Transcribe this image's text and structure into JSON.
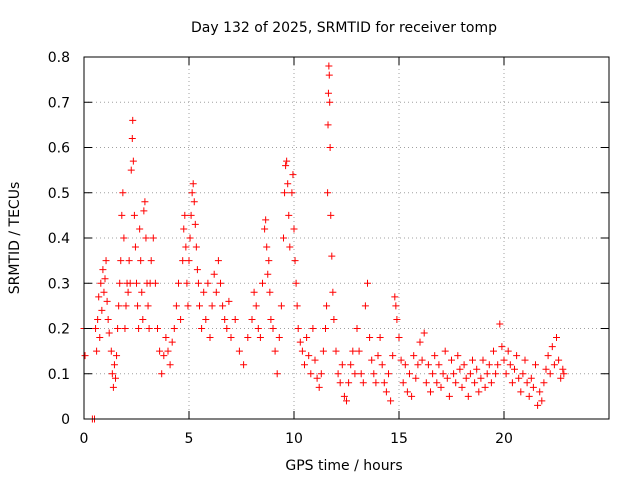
{
  "chart_data": {
    "type": "scatter",
    "title": "Day 132 of 2025, SRMTID for receiver tomp",
    "xlabel": "GPS time / hours",
    "ylabel": "SRMTID / TECUs",
    "xlim": [
      0,
      25
    ],
    "ylim": [
      0,
      0.8
    ],
    "xticks": [
      0,
      5,
      10,
      15,
      20
    ],
    "xtick_labels": [
      "0",
      "5",
      "10",
      "15",
      "20"
    ],
    "yticks": [
      0,
      0.1,
      0.2,
      0.3,
      0.4,
      0.5,
      0.6,
      0.7,
      0.8
    ],
    "ytick_labels": [
      "0",
      "0.1",
      "0.2",
      "0.3",
      "0.4",
      "0.5",
      "0.6",
      "0.7",
      "0.8"
    ],
    "grid": true,
    "marker": "plus",
    "color": "#ff0000",
    "series": [
      {
        "name": "SRMTID",
        "points": [
          [
            0.0,
            0.2
          ],
          [
            0.05,
            0.14
          ],
          [
            0.4,
            0.0
          ],
          [
            0.5,
            0.0
          ],
          [
            0.55,
            0.2
          ],
          [
            0.6,
            0.15
          ],
          [
            0.65,
            0.22
          ],
          [
            0.7,
            0.27
          ],
          [
            0.75,
            0.18
          ],
          [
            0.8,
            0.3
          ],
          [
            0.85,
            0.24
          ],
          [
            0.9,
            0.33
          ],
          [
            0.95,
            0.28
          ],
          [
            1.0,
            0.31
          ],
          [
            1.05,
            0.35
          ],
          [
            1.1,
            0.26
          ],
          [
            1.15,
            0.22
          ],
          [
            1.2,
            0.19
          ],
          [
            1.3,
            0.15
          ],
          [
            1.35,
            0.1
          ],
          [
            1.4,
            0.07
          ],
          [
            1.45,
            0.12
          ],
          [
            1.5,
            0.09
          ],
          [
            1.55,
            0.14
          ],
          [
            1.6,
            0.2
          ],
          [
            1.65,
            0.25
          ],
          [
            1.7,
            0.3
          ],
          [
            1.75,
            0.35
          ],
          [
            1.8,
            0.45
          ],
          [
            1.85,
            0.5
          ],
          [
            1.9,
            0.4
          ],
          [
            1.95,
            0.2
          ],
          [
            2.0,
            0.25
          ],
          [
            2.05,
            0.3
          ],
          [
            2.1,
            0.28
          ],
          [
            2.15,
            0.35
          ],
          [
            2.2,
            0.3
          ],
          [
            2.25,
            0.55
          ],
          [
            2.3,
            0.62
          ],
          [
            2.32,
            0.66
          ],
          [
            2.35,
            0.57
          ],
          [
            2.4,
            0.45
          ],
          [
            2.45,
            0.38
          ],
          [
            2.5,
            0.3
          ],
          [
            2.55,
            0.25
          ],
          [
            2.6,
            0.2
          ],
          [
            2.65,
            0.42
          ],
          [
            2.7,
            0.35
          ],
          [
            2.75,
            0.28
          ],
          [
            2.8,
            0.22
          ],
          [
            2.85,
            0.46
          ],
          [
            2.9,
            0.48
          ],
          [
            2.95,
            0.4
          ],
          [
            3.0,
            0.3
          ],
          [
            3.05,
            0.25
          ],
          [
            3.1,
            0.2
          ],
          [
            3.15,
            0.3
          ],
          [
            3.2,
            0.35
          ],
          [
            3.3,
            0.4
          ],
          [
            3.4,
            0.3
          ],
          [
            3.5,
            0.2
          ],
          [
            3.6,
            0.15
          ],
          [
            3.7,
            0.1
          ],
          [
            3.8,
            0.14
          ],
          [
            3.9,
            0.18
          ],
          [
            4.0,
            0.15
          ],
          [
            4.1,
            0.12
          ],
          [
            4.2,
            0.17
          ],
          [
            4.3,
            0.2
          ],
          [
            4.4,
            0.25
          ],
          [
            4.5,
            0.3
          ],
          [
            4.6,
            0.22
          ],
          [
            4.7,
            0.35
          ],
          [
            4.75,
            0.42
          ],
          [
            4.8,
            0.45
          ],
          [
            4.85,
            0.38
          ],
          [
            4.9,
            0.3
          ],
          [
            4.95,
            0.25
          ],
          [
            5.0,
            0.35
          ],
          [
            5.05,
            0.4
          ],
          [
            5.1,
            0.45
          ],
          [
            5.15,
            0.5
          ],
          [
            5.2,
            0.52
          ],
          [
            5.25,
            0.48
          ],
          [
            5.3,
            0.43
          ],
          [
            5.35,
            0.38
          ],
          [
            5.4,
            0.33
          ],
          [
            5.45,
            0.3
          ],
          [
            5.5,
            0.25
          ],
          [
            5.6,
            0.2
          ],
          [
            5.7,
            0.28
          ],
          [
            5.8,
            0.22
          ],
          [
            5.9,
            0.3
          ],
          [
            6.0,
            0.18
          ],
          [
            6.1,
            0.25
          ],
          [
            6.2,
            0.32
          ],
          [
            6.3,
            0.28
          ],
          [
            6.4,
            0.35
          ],
          [
            6.5,
            0.3
          ],
          [
            6.6,
            0.25
          ],
          [
            6.7,
            0.22
          ],
          [
            6.8,
            0.2
          ],
          [
            6.9,
            0.26
          ],
          [
            7.0,
            0.18
          ],
          [
            7.2,
            0.22
          ],
          [
            7.4,
            0.15
          ],
          [
            7.6,
            0.12
          ],
          [
            7.8,
            0.18
          ],
          [
            8.0,
            0.22
          ],
          [
            8.1,
            0.28
          ],
          [
            8.2,
            0.25
          ],
          [
            8.3,
            0.2
          ],
          [
            8.4,
            0.18
          ],
          [
            8.5,
            0.3
          ],
          [
            8.6,
            0.42
          ],
          [
            8.65,
            0.44
          ],
          [
            8.7,
            0.38
          ],
          [
            8.75,
            0.32
          ],
          [
            8.8,
            0.35
          ],
          [
            8.85,
            0.28
          ],
          [
            8.9,
            0.22
          ],
          [
            9.0,
            0.2
          ],
          [
            9.1,
            0.15
          ],
          [
            9.2,
            0.1
          ],
          [
            9.3,
            0.18
          ],
          [
            9.4,
            0.25
          ],
          [
            9.5,
            0.4
          ],
          [
            9.55,
            0.5
          ],
          [
            9.6,
            0.56
          ],
          [
            9.65,
            0.57
          ],
          [
            9.7,
            0.52
          ],
          [
            9.75,
            0.45
          ],
          [
            9.8,
            0.38
          ],
          [
            9.9,
            0.5
          ],
          [
            9.95,
            0.54
          ],
          [
            10.0,
            0.42
          ],
          [
            10.05,
            0.35
          ],
          [
            10.1,
            0.3
          ],
          [
            10.15,
            0.25
          ],
          [
            10.2,
            0.2
          ],
          [
            10.3,
            0.17
          ],
          [
            10.4,
            0.15
          ],
          [
            10.5,
            0.12
          ],
          [
            10.6,
            0.18
          ],
          [
            10.7,
            0.14
          ],
          [
            10.8,
            0.1
          ],
          [
            10.9,
            0.2
          ],
          [
            11.0,
            0.13
          ],
          [
            11.1,
            0.09
          ],
          [
            11.2,
            0.07
          ],
          [
            11.3,
            0.1
          ],
          [
            11.4,
            0.15
          ],
          [
            11.5,
            0.2
          ],
          [
            11.55,
            0.25
          ],
          [
            11.6,
            0.5
          ],
          [
            11.62,
            0.65
          ],
          [
            11.64,
            0.72
          ],
          [
            11.66,
            0.78
          ],
          [
            11.68,
            0.76
          ],
          [
            11.7,
            0.7
          ],
          [
            11.72,
            0.6
          ],
          [
            11.75,
            0.45
          ],
          [
            11.8,
            0.36
          ],
          [
            11.85,
            0.28
          ],
          [
            11.9,
            0.22
          ],
          [
            12.0,
            0.15
          ],
          [
            12.1,
            0.1
          ],
          [
            12.2,
            0.08
          ],
          [
            12.3,
            0.12
          ],
          [
            12.4,
            0.05
          ],
          [
            12.5,
            0.04
          ],
          [
            12.6,
            0.08
          ],
          [
            12.7,
            0.12
          ],
          [
            12.8,
            0.15
          ],
          [
            12.9,
            0.1
          ],
          [
            13.0,
            0.2
          ],
          [
            13.1,
            0.15
          ],
          [
            13.2,
            0.1
          ],
          [
            13.3,
            0.08
          ],
          [
            13.4,
            0.25
          ],
          [
            13.5,
            0.3
          ],
          [
            13.6,
            0.18
          ],
          [
            13.7,
            0.13
          ],
          [
            13.8,
            0.1
          ],
          [
            13.9,
            0.08
          ],
          [
            14.0,
            0.14
          ],
          [
            14.1,
            0.18
          ],
          [
            14.2,
            0.12
          ],
          [
            14.3,
            0.08
          ],
          [
            14.4,
            0.06
          ],
          [
            14.5,
            0.1
          ],
          [
            14.6,
            0.04
          ],
          [
            14.7,
            0.14
          ],
          [
            14.8,
            0.27
          ],
          [
            14.85,
            0.25
          ],
          [
            14.9,
            0.22
          ],
          [
            15.0,
            0.18
          ],
          [
            15.1,
            0.13
          ],
          [
            15.2,
            0.08
          ],
          [
            15.3,
            0.12
          ],
          [
            15.4,
            0.06
          ],
          [
            15.5,
            0.1
          ],
          [
            15.6,
            0.05
          ],
          [
            15.7,
            0.14
          ],
          [
            15.8,
            0.09
          ],
          [
            15.9,
            0.12
          ],
          [
            16.0,
            0.17
          ],
          [
            16.1,
            0.13
          ],
          [
            16.2,
            0.19
          ],
          [
            16.3,
            0.08
          ],
          [
            16.4,
            0.12
          ],
          [
            16.5,
            0.06
          ],
          [
            16.6,
            0.1
          ],
          [
            16.7,
            0.14
          ],
          [
            16.8,
            0.08
          ],
          [
            16.9,
            0.12
          ],
          [
            17.0,
            0.07
          ],
          [
            17.1,
            0.1
          ],
          [
            17.2,
            0.15
          ],
          [
            17.3,
            0.09
          ],
          [
            17.4,
            0.05
          ],
          [
            17.5,
            0.13
          ],
          [
            17.6,
            0.1
          ],
          [
            17.7,
            0.08
          ],
          [
            17.8,
            0.14
          ],
          [
            17.9,
            0.11
          ],
          [
            18.0,
            0.07
          ],
          [
            18.1,
            0.12
          ],
          [
            18.2,
            0.09
          ],
          [
            18.3,
            0.05
          ],
          [
            18.4,
            0.1
          ],
          [
            18.5,
            0.13
          ],
          [
            18.6,
            0.08
          ],
          [
            18.7,
            0.11
          ],
          [
            18.8,
            0.06
          ],
          [
            18.9,
            0.09
          ],
          [
            19.0,
            0.13
          ],
          [
            19.1,
            0.07
          ],
          [
            19.2,
            0.1
          ],
          [
            19.3,
            0.12
          ],
          [
            19.4,
            0.08
          ],
          [
            19.5,
            0.15
          ],
          [
            19.6,
            0.1
          ],
          [
            19.7,
            0.12
          ],
          [
            19.8,
            0.21
          ],
          [
            19.9,
            0.16
          ],
          [
            20.0,
            0.13
          ],
          [
            20.1,
            0.1
          ],
          [
            20.2,
            0.15
          ],
          [
            20.3,
            0.12
          ],
          [
            20.4,
            0.08
          ],
          [
            20.5,
            0.11
          ],
          [
            20.6,
            0.14
          ],
          [
            20.7,
            0.09
          ],
          [
            20.8,
            0.06
          ],
          [
            20.9,
            0.1
          ],
          [
            21.0,
            0.13
          ],
          [
            21.1,
            0.08
          ],
          [
            21.2,
            0.05
          ],
          [
            21.3,
            0.09
          ],
          [
            21.4,
            0.07
          ],
          [
            21.5,
            0.12
          ],
          [
            21.6,
            0.03
          ],
          [
            21.7,
            0.06
          ],
          [
            21.8,
            0.04
          ],
          [
            21.9,
            0.08
          ],
          [
            22.0,
            0.11
          ],
          [
            22.1,
            0.14
          ],
          [
            22.2,
            0.1
          ],
          [
            22.3,
            0.16
          ],
          [
            22.4,
            0.12
          ],
          [
            22.5,
            0.18
          ],
          [
            22.6,
            0.13
          ],
          [
            22.7,
            0.09
          ],
          [
            22.8,
            0.11
          ],
          [
            22.85,
            0.1
          ]
        ]
      }
    ]
  }
}
